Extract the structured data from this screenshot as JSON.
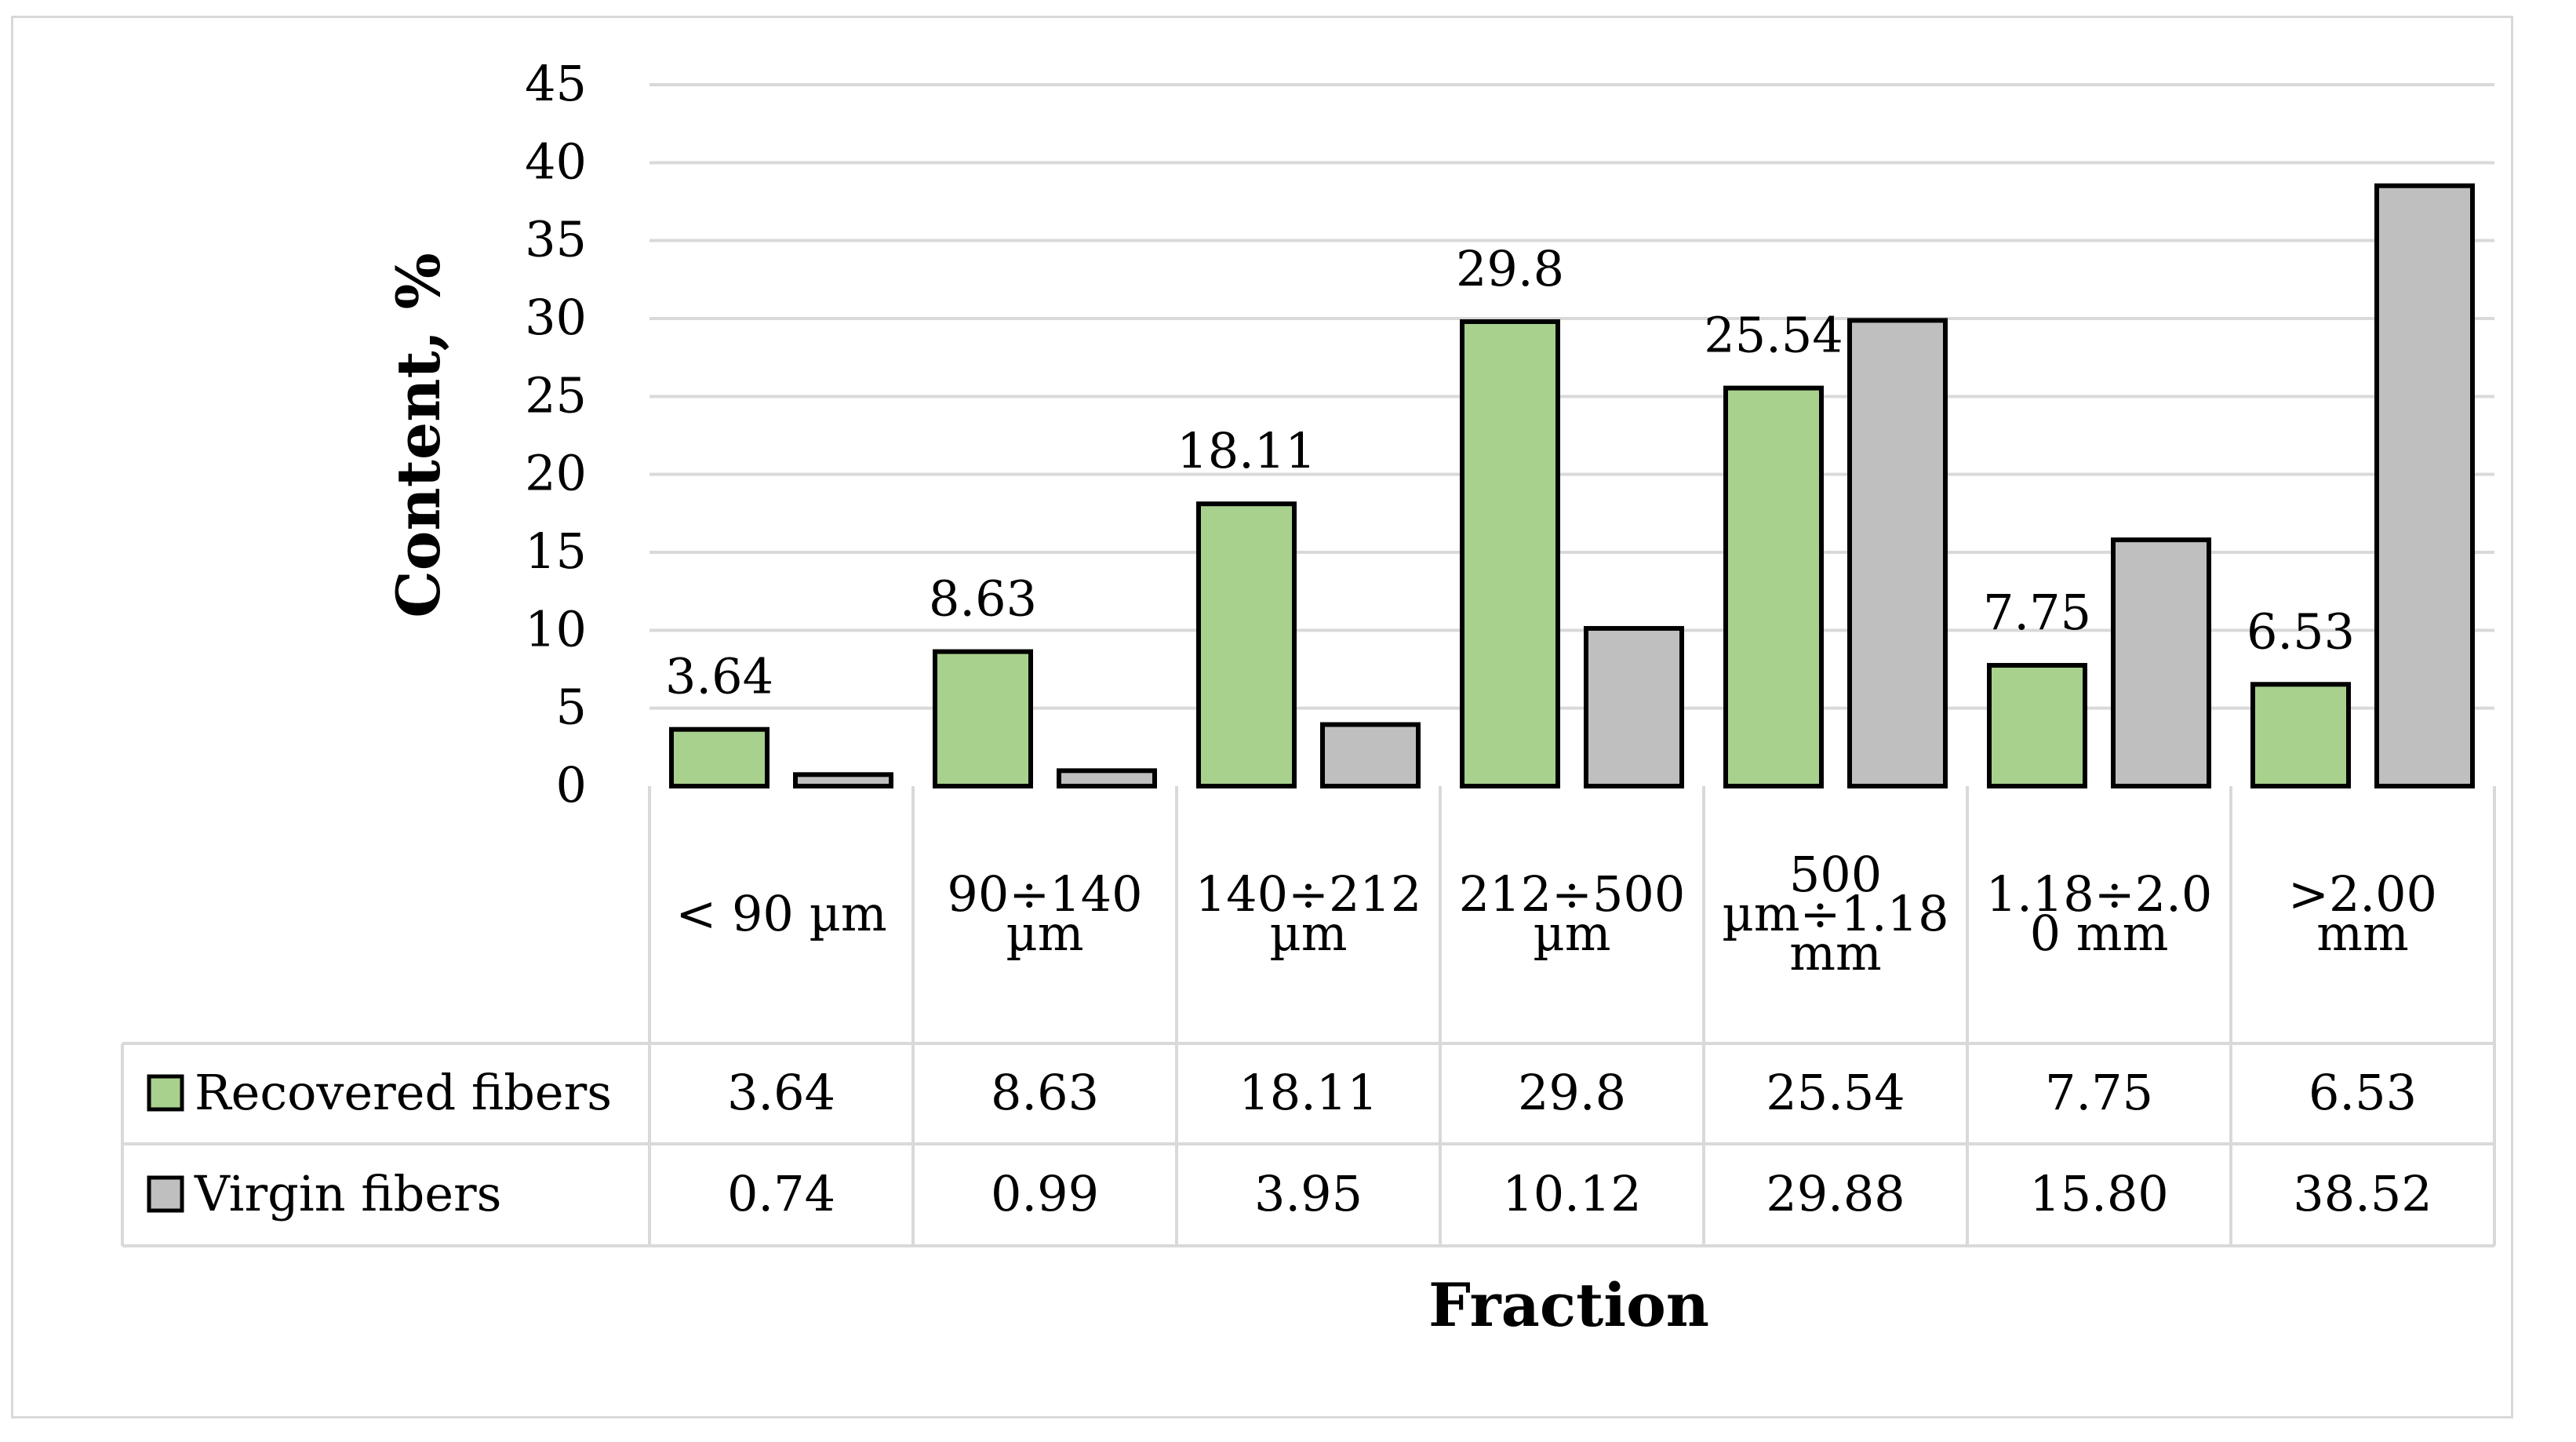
{
  "chart_data": {
    "type": "bar",
    "title": "",
    "xlabel": "Fraction",
    "ylabel": "Content, %",
    "ylim": [
      0,
      45
    ],
    "yticks": [
      0,
      5,
      10,
      15,
      20,
      25,
      30,
      35,
      40,
      45
    ],
    "grid": true,
    "legend": "data-table",
    "categories": [
      [
        "< 90 µm"
      ],
      [
        "90÷140",
        "µm"
      ],
      [
        "140÷212",
        "µm"
      ],
      [
        "212÷500",
        "µm"
      ],
      [
        "500",
        "µm÷1.18",
        "mm"
      ],
      [
        "1.18÷2.0",
        "0 mm"
      ],
      [
        ">2.00",
        "mm"
      ]
    ],
    "series": [
      {
        "name": "Recovered fibers",
        "color": "#a9d18e",
        "values": [
          3.64,
          8.63,
          18.11,
          29.8,
          25.54,
          7.75,
          6.53
        ],
        "labels": [
          "3.64",
          "8.63",
          "18.11",
          "29.8",
          "25.54",
          "7.75",
          "6.53"
        ],
        "data_labels_shown": true
      },
      {
        "name": "Virgin fibers",
        "color": "#bfbfbf",
        "values": [
          0.74,
          0.99,
          3.95,
          10.12,
          29.88,
          15.8,
          38.52
        ],
        "labels": [
          "0.74",
          "0.99",
          "3.95",
          "10.12",
          "29.88",
          "15.80",
          "38.52"
        ],
        "data_labels_shown": false
      }
    ]
  }
}
